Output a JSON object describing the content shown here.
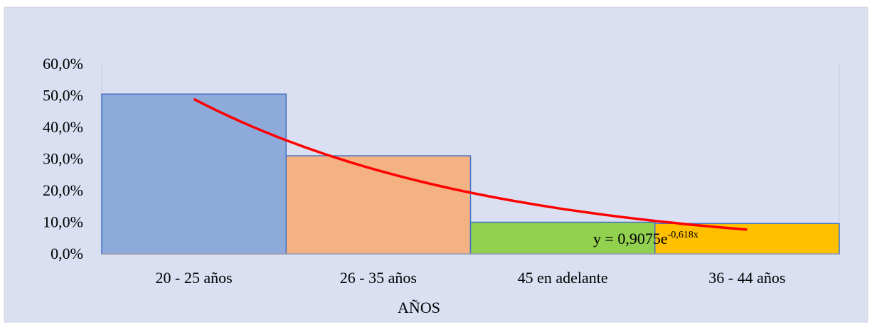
{
  "chart_data": {
    "type": "bar",
    "categories": [
      "20 - 25 años",
      "26 - 35 años",
      "45 en adelante",
      "36 - 44 años"
    ],
    "values": [
      50.5,
      31.0,
      10.0,
      9.6
    ],
    "value_format": "percent",
    "xlabel": "AÑOS",
    "ylabel": "",
    "ylim": [
      0,
      60
    ],
    "yticks": [
      "0,0%",
      "10,0%",
      "20,0%",
      "30,0%",
      "40,0%",
      "50,0%",
      "60,0%"
    ],
    "grid": false,
    "legend": "none",
    "bar_colors": [
      "#8eaadb",
      "#f4b183",
      "#92d050",
      "#ffc000"
    ],
    "bar_border_color": "#4472c4",
    "background_color": "#dae0f2",
    "trendline": {
      "type": "exponential",
      "color": "#ff0000",
      "a": 0.9075,
      "b": -0.618,
      "equation_main": "y = 0,9075e",
      "equation_exponent": "-0,618x"
    }
  }
}
